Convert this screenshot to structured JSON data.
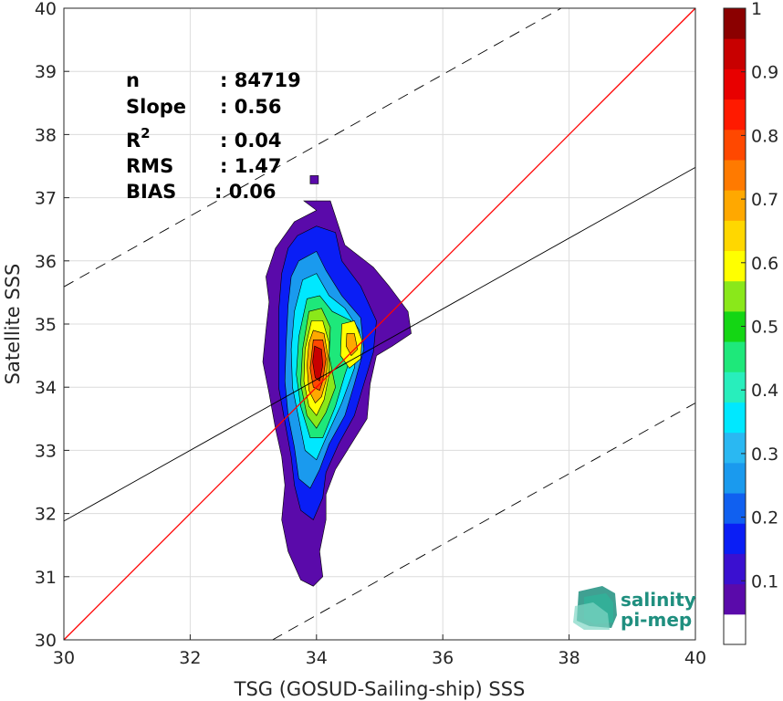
{
  "chart_data": {
    "type": "heatmap",
    "xlabel": "TSG (GOSUD-Sailing-ship) SSS",
    "ylabel": "Satellite SSS",
    "xlim": [
      30,
      40
    ],
    "ylim": [
      30,
      40
    ],
    "xticks": [
      "30",
      "32",
      "34",
      "36",
      "38",
      "40"
    ],
    "yticks": [
      "30",
      "31",
      "32",
      "33",
      "34",
      "35",
      "36",
      "37",
      "38",
      "39",
      "40"
    ],
    "grid": true,
    "stats": [
      {
        "label": "n",
        "value": ": 84719"
      },
      {
        "label": "Slope",
        "value": ": 0.56"
      },
      {
        "label": "R",
        "sup": "2",
        "value": ": 0.04"
      },
      {
        "label": "RMS",
        "value": ": 1.47"
      },
      {
        "label": "BIAS",
        "value": ": 0.06"
      }
    ],
    "lines": {
      "one_to_one": {
        "slope": 1,
        "intercept": 0,
        "color": "#ff0000"
      },
      "regression": {
        "slope": 0.56,
        "intercept": 15.08,
        "color": "#000000"
      },
      "upper_dashed": {
        "slope": 0.56,
        "intercept": 18.79,
        "color": "#000000"
      },
      "lower_dashed": {
        "slope": 0.56,
        "intercept": 11.35,
        "color": "#000000"
      }
    },
    "colorbar": {
      "ticks": [
        "0.1",
        "0.2",
        "0.3",
        "0.4",
        "0.5",
        "0.6",
        "0.7",
        "0.8",
        "0.9",
        "1"
      ],
      "colors": [
        "#ffffff",
        "#5a0aaa",
        "#3a10d0",
        "#0a1ef5",
        "#1060f0",
        "#1a9aee",
        "#2ab8f2",
        "#00e8ff",
        "#28eebc",
        "#1ee87a",
        "#14d614",
        "#8ae81a",
        "#ffff00",
        "#ffd700",
        "#ffa800",
        "#ff7a00",
        "#ff4800",
        "#ff1a00",
        "#e80000",
        "#c80000",
        "#8b0000"
      ]
    },
    "density_levels": [
      {
        "level": 0.05,
        "color": "#5a0aaa",
        "pts": [
          [
            33.65,
            36.62
          ],
          [
            34.0,
            36.8
          ],
          [
            33.8,
            36.95
          ],
          [
            34.22,
            36.95
          ],
          [
            34.45,
            36.25
          ],
          [
            34.9,
            35.9
          ],
          [
            35.15,
            35.6
          ],
          [
            35.45,
            35.2
          ],
          [
            35.5,
            34.85
          ],
          [
            35.2,
            34.65
          ],
          [
            34.95,
            34.5
          ],
          [
            34.85,
            34.05
          ],
          [
            34.8,
            33.5
          ],
          [
            34.55,
            33.1
          ],
          [
            34.3,
            32.7
          ],
          [
            34.15,
            32.3
          ],
          [
            34.15,
            31.9
          ],
          [
            34.05,
            31.4
          ],
          [
            34.1,
            31.0
          ],
          [
            33.95,
            30.85
          ],
          [
            33.75,
            30.95
          ],
          [
            33.55,
            31.4
          ],
          [
            33.45,
            31.9
          ],
          [
            33.5,
            32.45
          ],
          [
            33.45,
            32.9
          ],
          [
            33.35,
            33.35
          ],
          [
            33.25,
            33.9
          ],
          [
            33.15,
            34.4
          ],
          [
            33.2,
            34.9
          ],
          [
            33.25,
            35.35
          ],
          [
            33.2,
            35.75
          ],
          [
            33.35,
            36.2
          ]
        ],
        "extra": [
          [
            33.9,
            37.35
          ],
          [
            34.03,
            37.35
          ],
          [
            34.03,
            37.22
          ],
          [
            33.9,
            37.22
          ]
        ]
      },
      {
        "level": 0.15,
        "color": "#0a1ef5",
        "pts": [
          [
            33.7,
            36.4
          ],
          [
            34.0,
            36.55
          ],
          [
            34.3,
            36.45
          ],
          [
            34.4,
            36.0
          ],
          [
            34.7,
            35.6
          ],
          [
            34.95,
            35.05
          ],
          [
            34.9,
            34.55
          ],
          [
            34.75,
            34.05
          ],
          [
            34.6,
            33.55
          ],
          [
            34.35,
            33.1
          ],
          [
            34.15,
            32.65
          ],
          [
            34.1,
            32.25
          ],
          [
            33.95,
            31.9
          ],
          [
            33.75,
            32.05
          ],
          [
            33.65,
            32.45
          ],
          [
            33.6,
            32.9
          ],
          [
            33.5,
            33.45
          ],
          [
            33.4,
            34.0
          ],
          [
            33.4,
            34.6
          ],
          [
            33.4,
            35.2
          ],
          [
            33.45,
            35.8
          ],
          [
            33.55,
            36.2
          ]
        ]
      },
      {
        "level": 0.25,
        "color": "#1a9aee",
        "pts": [
          [
            33.72,
            36.0
          ],
          [
            34.0,
            36.15
          ],
          [
            34.15,
            35.85
          ],
          [
            34.4,
            35.45
          ],
          [
            34.7,
            35.1
          ],
          [
            34.75,
            34.6
          ],
          [
            34.6,
            34.05
          ],
          [
            34.45,
            33.55
          ],
          [
            34.2,
            33.1
          ],
          [
            34.05,
            32.7
          ],
          [
            33.9,
            32.4
          ],
          [
            33.72,
            32.55
          ],
          [
            33.65,
            33.05
          ],
          [
            33.55,
            33.55
          ],
          [
            33.5,
            34.1
          ],
          [
            33.52,
            34.7
          ],
          [
            33.55,
            35.3
          ],
          [
            33.6,
            35.75
          ]
        ]
      },
      {
        "level": 0.35,
        "color": "#00e8ff",
        "pts": [
          [
            33.78,
            35.7
          ],
          [
            34.0,
            35.8
          ],
          [
            34.2,
            35.45
          ],
          [
            34.45,
            35.25
          ],
          [
            34.68,
            34.9
          ],
          [
            34.6,
            34.3
          ],
          [
            34.4,
            33.75
          ],
          [
            34.15,
            33.2
          ],
          [
            34.0,
            32.85
          ],
          [
            33.82,
            33.0
          ],
          [
            33.72,
            33.5
          ],
          [
            33.62,
            34.0
          ],
          [
            33.6,
            34.6
          ],
          [
            33.65,
            35.2
          ]
        ]
      },
      {
        "level": 0.45,
        "color": "#1ee87a",
        "pts": [
          [
            33.85,
            35.4
          ],
          [
            34.05,
            35.45
          ],
          [
            34.25,
            35.2
          ],
          [
            34.55,
            35.05
          ],
          [
            34.62,
            34.7
          ],
          [
            34.45,
            34.2
          ],
          [
            34.3,
            33.7
          ],
          [
            34.1,
            33.2
          ],
          [
            33.9,
            33.2
          ],
          [
            33.75,
            33.7
          ],
          [
            33.68,
            34.2
          ],
          [
            33.72,
            34.8
          ]
        ]
      },
      {
        "level": 0.55,
        "color": "#8ae81a",
        "pts": [
          [
            33.88,
            35.2
          ],
          [
            34.08,
            35.25
          ],
          [
            34.22,
            34.95
          ],
          [
            34.2,
            34.5
          ],
          [
            34.3,
            34.0
          ],
          [
            34.15,
            33.6
          ],
          [
            34.0,
            33.35
          ],
          [
            33.85,
            33.55
          ],
          [
            33.75,
            34.05
          ],
          [
            33.78,
            34.6
          ]
        ]
      },
      {
        "level": 0.65,
        "color": "#ffff00",
        "pts": [
          [
            33.92,
            35.05
          ],
          [
            34.1,
            35.05
          ],
          [
            34.2,
            34.7
          ],
          [
            34.2,
            34.2
          ],
          [
            34.12,
            33.8
          ],
          [
            34.0,
            33.55
          ],
          [
            33.88,
            33.7
          ],
          [
            33.8,
            34.1
          ],
          [
            33.82,
            34.6
          ]
        ]
      },
      {
        "level": 0.75,
        "color": "#ffa800",
        "pts": [
          [
            33.95,
            34.9
          ],
          [
            34.12,
            34.85
          ],
          [
            34.18,
            34.5
          ],
          [
            34.15,
            34.1
          ],
          [
            34.08,
            33.85
          ],
          [
            33.98,
            33.75
          ],
          [
            33.88,
            33.95
          ],
          [
            33.85,
            34.35
          ],
          [
            33.88,
            34.7
          ]
        ]
      },
      {
        "level": 0.85,
        "color": "#ff4800",
        "pts": [
          [
            33.95,
            34.75
          ],
          [
            34.1,
            34.75
          ],
          [
            34.15,
            34.45
          ],
          [
            34.1,
            34.1
          ],
          [
            34.05,
            33.95
          ],
          [
            33.95,
            34.0
          ],
          [
            33.9,
            34.3
          ]
        ]
      },
      {
        "level": 0.95,
        "color": "#c80000",
        "pts": [
          [
            33.97,
            34.65
          ],
          [
            34.08,
            34.6
          ],
          [
            34.1,
            34.35
          ],
          [
            34.05,
            34.1
          ],
          [
            33.98,
            34.15
          ],
          [
            33.94,
            34.4
          ]
        ]
      }
    ],
    "secondary_peak": [
      {
        "color": "#ffff00",
        "pts": [
          [
            34.4,
            35.0
          ],
          [
            34.6,
            35.05
          ],
          [
            34.72,
            34.75
          ],
          [
            34.7,
            34.45
          ],
          [
            34.52,
            34.3
          ],
          [
            34.38,
            34.5
          ]
        ]
      },
      {
        "color": "#ffa800",
        "pts": [
          [
            34.48,
            34.85
          ],
          [
            34.6,
            34.85
          ],
          [
            34.65,
            34.6
          ],
          [
            34.55,
            34.5
          ],
          [
            34.47,
            34.65
          ]
        ]
      }
    ],
    "logo": {
      "line1": "salinity",
      "line2": "pi-mep",
      "color": "#1f8f7f"
    }
  }
}
